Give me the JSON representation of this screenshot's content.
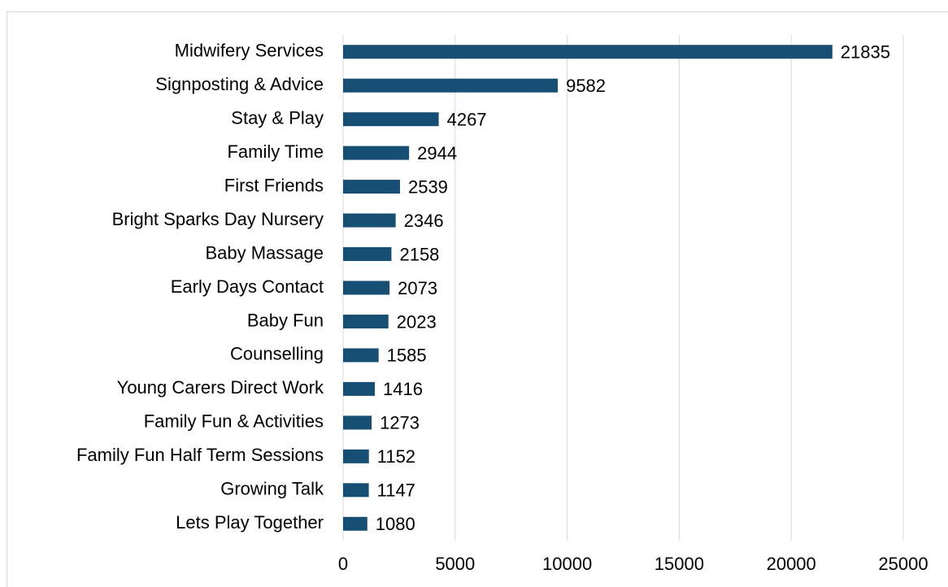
{
  "chart_data": {
    "type": "bar",
    "orientation": "horizontal",
    "categories": [
      "Midwifery Services",
      "Signposting & Advice",
      "Stay & Play",
      "Family Time",
      "First Friends",
      "Bright Sparks Day Nursery",
      "Baby Massage",
      "Early Days Contact",
      "Baby Fun",
      "Counselling",
      "Young Carers Direct Work",
      "Family Fun & Activities",
      "Family Fun Half Term Sessions",
      "Growing Talk",
      "Lets Play Together"
    ],
    "values": [
      21835,
      9582,
      4267,
      2944,
      2539,
      2346,
      2158,
      2073,
      2023,
      1585,
      1416,
      1273,
      1152,
      1147,
      1080
    ],
    "color": "#174f74",
    "xlim": [
      0,
      25000
    ],
    "xticks": [
      0,
      5000,
      10000,
      15000,
      20000,
      25000
    ],
    "grid": true
  }
}
